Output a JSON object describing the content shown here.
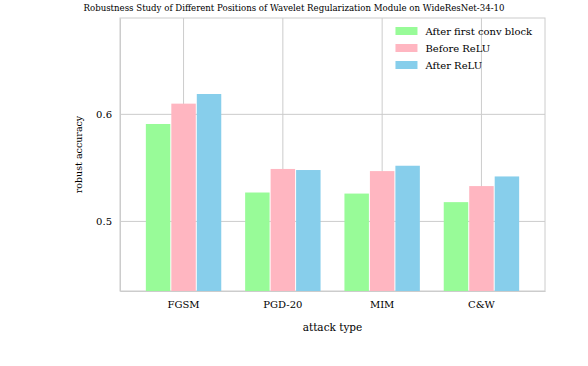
{
  "chart_data": {
    "type": "bar",
    "title": "Robustness Study of Different Positions of Wavelet Regularization Module on WideResNet-34-10",
    "x_label": "attack type",
    "y_label": "robust accuracy",
    "categories": [
      "FGSM",
      "PGD-20",
      "MIM",
      "C&W"
    ],
    "series": [
      {
        "name": "After first conv block",
        "color": "#98fb98",
        "values": [
          0.591,
          0.527,
          0.526,
          0.518
        ]
      },
      {
        "name": "Before ReLU",
        "color": "#ffb6c1",
        "values": [
          0.61,
          0.549,
          0.547,
          0.533
        ]
      },
      {
        "name": "After ReLU",
        "color": "#87ceeb",
        "values": [
          0.619,
          0.548,
          0.552,
          0.542
        ]
      }
    ],
    "ylim": [
      0.435,
      0.69
    ],
    "yticks": [
      0.5,
      0.6
    ],
    "grid": true,
    "legend": "upper right"
  }
}
